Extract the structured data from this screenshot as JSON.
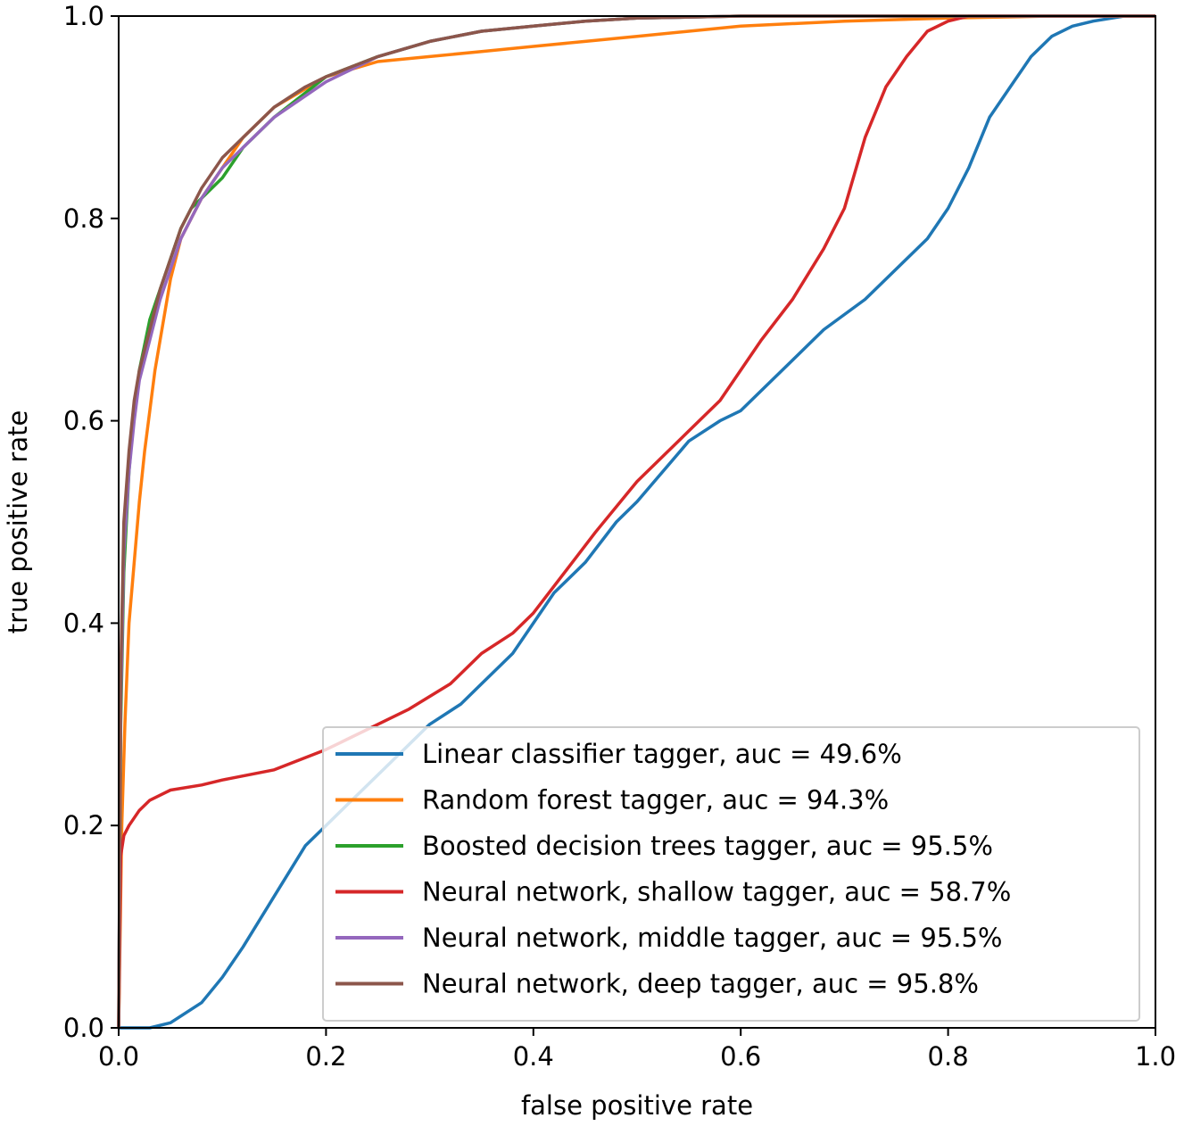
{
  "chart_data": {
    "type": "line",
    "title": "",
    "xlabel": "false positive rate",
    "ylabel": "true positive rate",
    "xlim": [
      0,
      1
    ],
    "ylim": [
      0,
      1
    ],
    "xticks": [
      "0.0",
      "0.2",
      "0.4",
      "0.6",
      "0.8",
      "1.0"
    ],
    "yticks": [
      "0.0",
      "0.2",
      "0.4",
      "0.6",
      "0.8",
      "1.0"
    ],
    "grid": false,
    "legend_position": "lower-right",
    "series": [
      {
        "name": "Linear classifier tagger, auc = 49.6%",
        "color": "#1f77b4",
        "x": [
          0,
          0.03,
          0.05,
          0.08,
          0.1,
          0.12,
          0.15,
          0.18,
          0.2,
          0.22,
          0.25,
          0.28,
          0.3,
          0.33,
          0.35,
          0.38,
          0.42,
          0.45,
          0.48,
          0.5,
          0.55,
          0.58,
          0.6,
          0.62,
          0.65,
          0.68,
          0.72,
          0.75,
          0.78,
          0.8,
          0.82,
          0.84,
          0.86,
          0.88,
          0.9,
          0.92,
          0.94,
          0.97,
          1.0
        ],
        "y": [
          0,
          0.0,
          0.005,
          0.025,
          0.05,
          0.08,
          0.13,
          0.18,
          0.2,
          0.22,
          0.25,
          0.28,
          0.3,
          0.32,
          0.34,
          0.37,
          0.43,
          0.46,
          0.5,
          0.52,
          0.58,
          0.6,
          0.61,
          0.63,
          0.66,
          0.69,
          0.72,
          0.75,
          0.78,
          0.81,
          0.85,
          0.9,
          0.93,
          0.96,
          0.98,
          0.99,
          0.995,
          1.0,
          1.0
        ]
      },
      {
        "name": "Random forest tagger, auc = 94.3%",
        "color": "#ff7f0e",
        "x": [
          0,
          0.003,
          0.006,
          0.01,
          0.015,
          0.02,
          0.025,
          0.03,
          0.035,
          0.04,
          0.045,
          0.05,
          0.055,
          0.06,
          0.07,
          0.08,
          0.1,
          0.12,
          0.15,
          0.2,
          0.25,
          0.3,
          0.35,
          0.4,
          0.45,
          0.5,
          0.55,
          0.6,
          0.7,
          0.8,
          0.9,
          1.0
        ],
        "y": [
          0,
          0.2,
          0.3,
          0.4,
          0.46,
          0.52,
          0.57,
          0.61,
          0.65,
          0.68,
          0.71,
          0.74,
          0.76,
          0.78,
          0.8,
          0.82,
          0.85,
          0.88,
          0.91,
          0.94,
          0.955,
          0.96,
          0.965,
          0.97,
          0.975,
          0.98,
          0.985,
          0.99,
          0.995,
          0.998,
          1.0,
          1.0
        ]
      },
      {
        "name": "Boosted decision trees tagger, auc = 95.5%",
        "color": "#2ca02c",
        "x": [
          0,
          0.002,
          0.005,
          0.01,
          0.015,
          0.02,
          0.03,
          0.04,
          0.05,
          0.06,
          0.07,
          0.08,
          0.1,
          0.12,
          0.15,
          0.2,
          0.25,
          0.3,
          0.35,
          0.4,
          0.45,
          0.5,
          0.6,
          0.7,
          0.8,
          1.0
        ],
        "y": [
          0,
          0.3,
          0.45,
          0.55,
          0.61,
          0.65,
          0.7,
          0.73,
          0.76,
          0.79,
          0.81,
          0.82,
          0.84,
          0.87,
          0.9,
          0.94,
          0.96,
          0.975,
          0.985,
          0.99,
          0.995,
          0.998,
          1.0,
          1.0,
          1.0,
          1.0
        ]
      },
      {
        "name": "Neural network, shallow tagger, auc = 58.7%",
        "color": "#d62728",
        "x": [
          0,
          0.002,
          0.005,
          0.01,
          0.02,
          0.03,
          0.05,
          0.08,
          0.1,
          0.15,
          0.2,
          0.25,
          0.28,
          0.32,
          0.35,
          0.38,
          0.4,
          0.43,
          0.46,
          0.5,
          0.52,
          0.55,
          0.58,
          0.6,
          0.62,
          0.65,
          0.68,
          0.7,
          0.72,
          0.74,
          0.76,
          0.78,
          0.8,
          0.82,
          0.85,
          0.9,
          1.0
        ],
        "y": [
          0,
          0.17,
          0.19,
          0.2,
          0.215,
          0.225,
          0.235,
          0.24,
          0.245,
          0.255,
          0.275,
          0.3,
          0.315,
          0.34,
          0.37,
          0.39,
          0.41,
          0.45,
          0.49,
          0.54,
          0.56,
          0.59,
          0.62,
          0.65,
          0.68,
          0.72,
          0.77,
          0.81,
          0.88,
          0.93,
          0.96,
          0.985,
          0.995,
          1.0,
          1.0,
          1.0,
          1.0
        ]
      },
      {
        "name": "Neural network, middle tagger, auc = 95.5%",
        "color": "#9467bd",
        "x": [
          0,
          0.002,
          0.005,
          0.01,
          0.015,
          0.02,
          0.03,
          0.04,
          0.05,
          0.06,
          0.07,
          0.08,
          0.1,
          0.12,
          0.15,
          0.2,
          0.25,
          0.3,
          0.35,
          0.4,
          0.45,
          0.5,
          0.6,
          0.7,
          0.8,
          1.0
        ],
        "y": [
          0,
          0.32,
          0.47,
          0.55,
          0.6,
          0.64,
          0.68,
          0.72,
          0.75,
          0.78,
          0.8,
          0.82,
          0.85,
          0.87,
          0.9,
          0.935,
          0.96,
          0.975,
          0.985,
          0.99,
          0.995,
          0.998,
          1.0,
          1.0,
          1.0,
          1.0
        ]
      },
      {
        "name": "Neural network, deep tagger, auc = 95.8%",
        "color": "#8c564b",
        "x": [
          0,
          0.002,
          0.005,
          0.01,
          0.015,
          0.02,
          0.03,
          0.04,
          0.05,
          0.06,
          0.07,
          0.08,
          0.1,
          0.12,
          0.15,
          0.18,
          0.2,
          0.25,
          0.3,
          0.35,
          0.4,
          0.45,
          0.5,
          0.6,
          0.7,
          0.8,
          1.0
        ],
        "y": [
          0,
          0.35,
          0.5,
          0.57,
          0.62,
          0.65,
          0.69,
          0.73,
          0.76,
          0.79,
          0.81,
          0.83,
          0.86,
          0.88,
          0.91,
          0.93,
          0.94,
          0.96,
          0.975,
          0.985,
          0.99,
          0.995,
          0.998,
          1.0,
          1.0,
          1.0,
          1.0
        ]
      }
    ]
  }
}
